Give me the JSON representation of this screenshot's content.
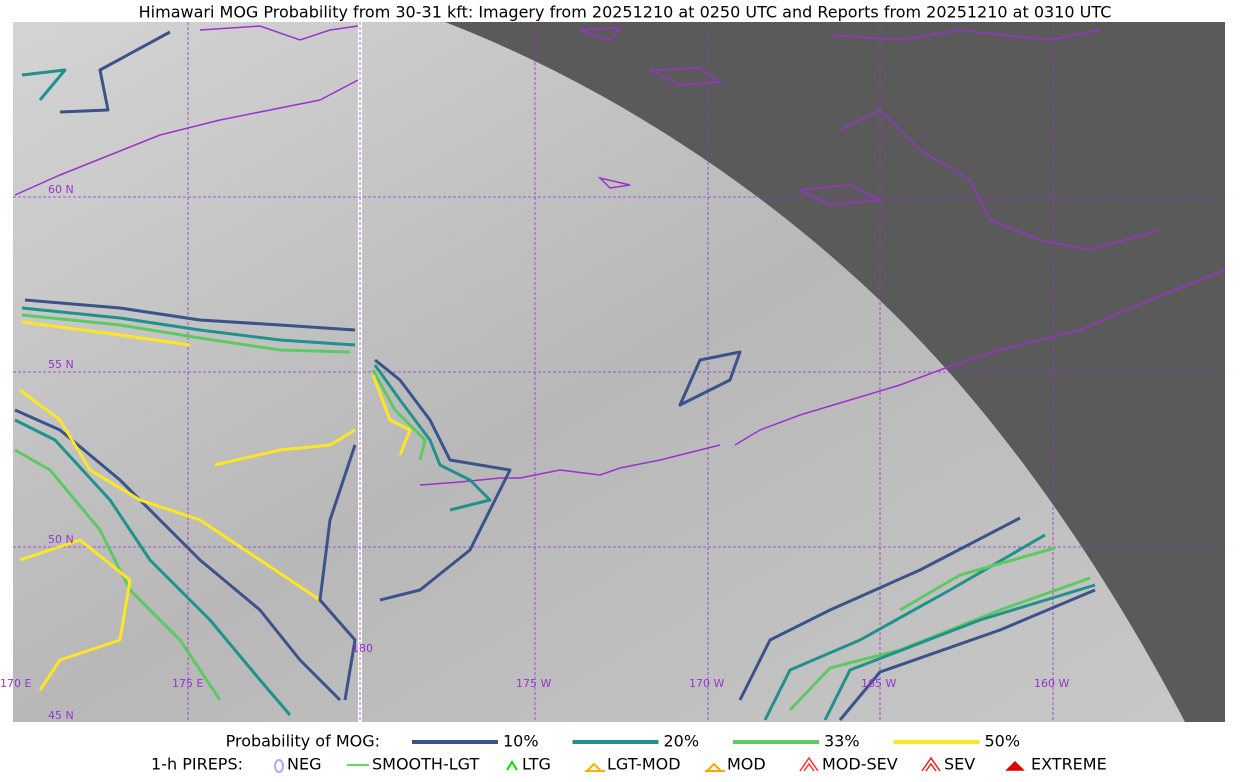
{
  "title": "Himawari MOG Probability from 30-31 kft: Imagery from 20251210 at 0250 UTC and Reports from 20251210 at 0310 UTC",
  "grid_labels": {
    "lat": [
      "60 N",
      "55 N",
      "50 N",
      "45 N"
    ],
    "lon": [
      "170 E",
      "175 E",
      "180",
      "175 W",
      "170 W",
      "165 W",
      "160 W"
    ]
  },
  "legend": {
    "probability": {
      "label": "Probability of MOG:",
      "items": [
        {
          "label": "10%",
          "color": "#3b528b"
        },
        {
          "label": "20%",
          "color": "#21918c"
        },
        {
          "label": "33%",
          "color": "#5ec962"
        },
        {
          "label": "50%",
          "color": "#fde725"
        }
      ]
    },
    "pireps": {
      "label": "1-h PIREPS:",
      "items": [
        {
          "label": "NEG",
          "color": "#a9a9f5"
        },
        {
          "label": "SMOOTH-LGT",
          "color": "#33cc33"
        },
        {
          "label": "LTG",
          "color": "#00dd00"
        },
        {
          "label": "LGT-MOD",
          "color": "#ffb000"
        },
        {
          "label": "MOD",
          "color": "#ffa500"
        },
        {
          "label": "MOD-SEV",
          "color": "#ff3333"
        },
        {
          "label": "SEV",
          "color": "#ee2222"
        },
        {
          "label": "EXTREME",
          "color": "#dd0000"
        }
      ]
    }
  }
}
